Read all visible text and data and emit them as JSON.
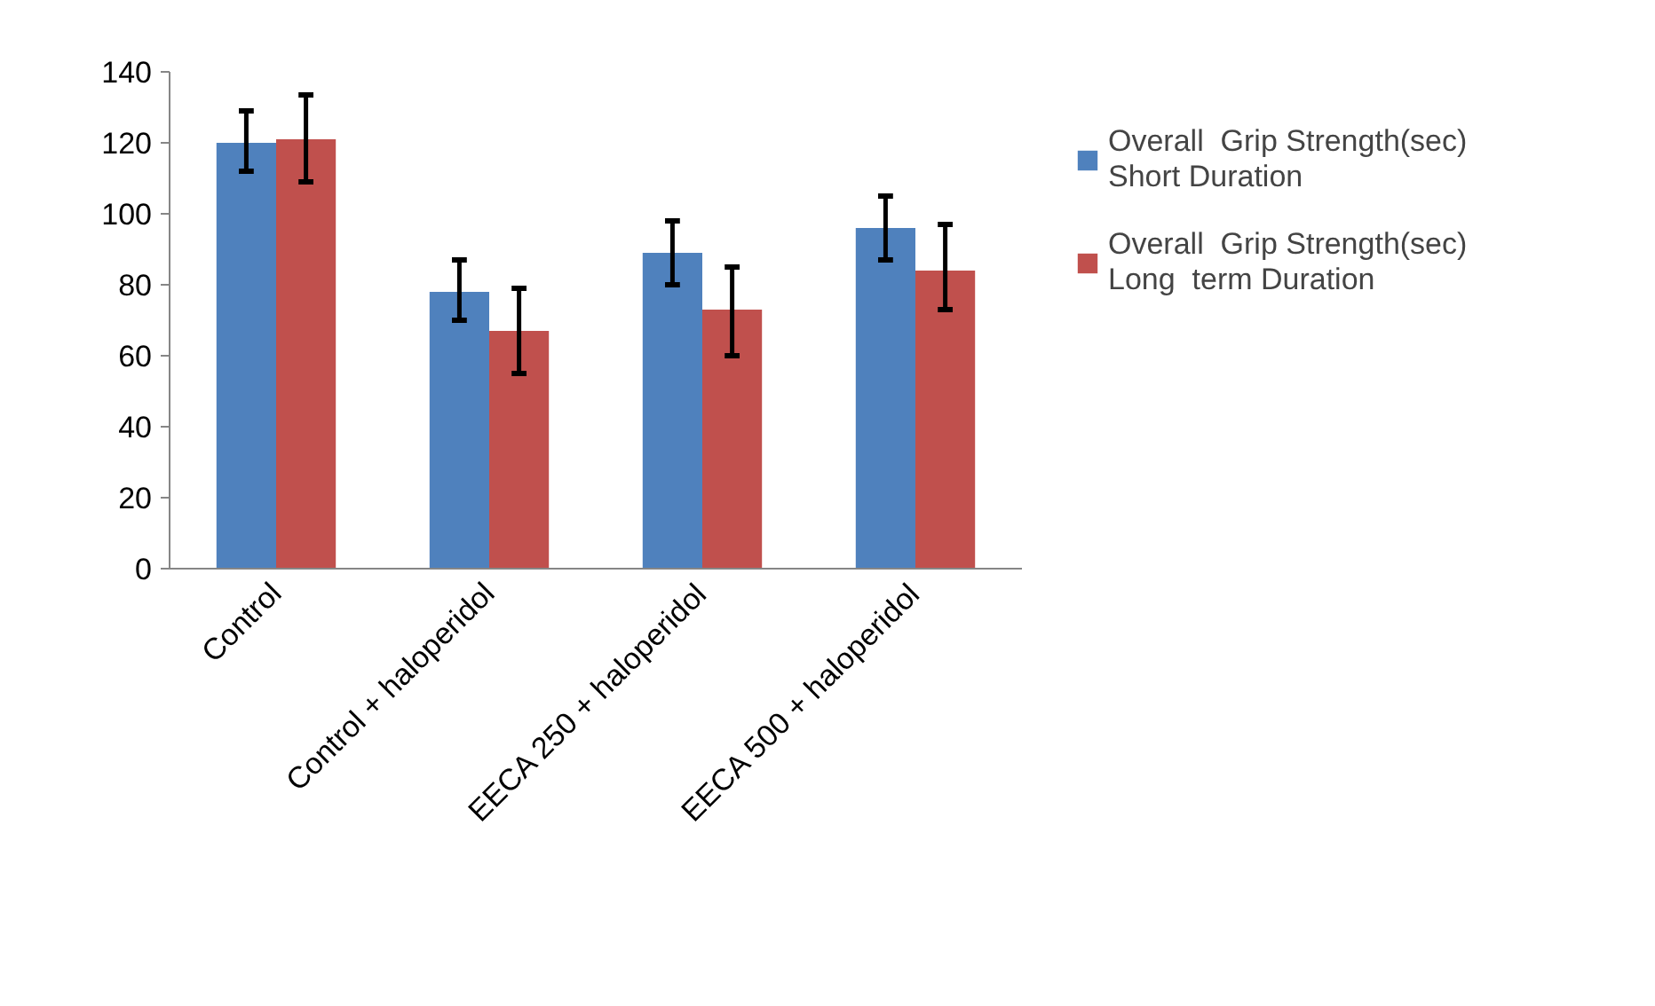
{
  "chart_data": {
    "type": "bar",
    "categories": [
      "Control",
      "Control + haloperidol",
      "EECA 250 + haloperidol",
      "EECA 500 + haloperidol"
    ],
    "series": [
      {
        "name": "Overall  Grip Strength(sec) Short Duration",
        "color": "#4f81bd",
        "values": [
          120,
          78,
          89,
          96
        ],
        "errors": [
          [
            112,
            129
          ],
          [
            70,
            87
          ],
          [
            80,
            98
          ],
          [
            87,
            105
          ]
        ]
      },
      {
        "name": "Overall  Grip Strength(sec) Long  term Duration",
        "color": "#c0504d",
        "values": [
          121,
          67,
          73,
          84
        ],
        "errors": [
          [
            109,
            133.5
          ],
          [
            55,
            79
          ],
          [
            60,
            85
          ],
          [
            73,
            97
          ]
        ]
      }
    ],
    "ylim": [
      0,
      140
    ],
    "yticks": [
      0,
      20,
      40,
      60,
      80,
      100,
      120,
      140
    ],
    "grid": false,
    "legend": "right"
  }
}
